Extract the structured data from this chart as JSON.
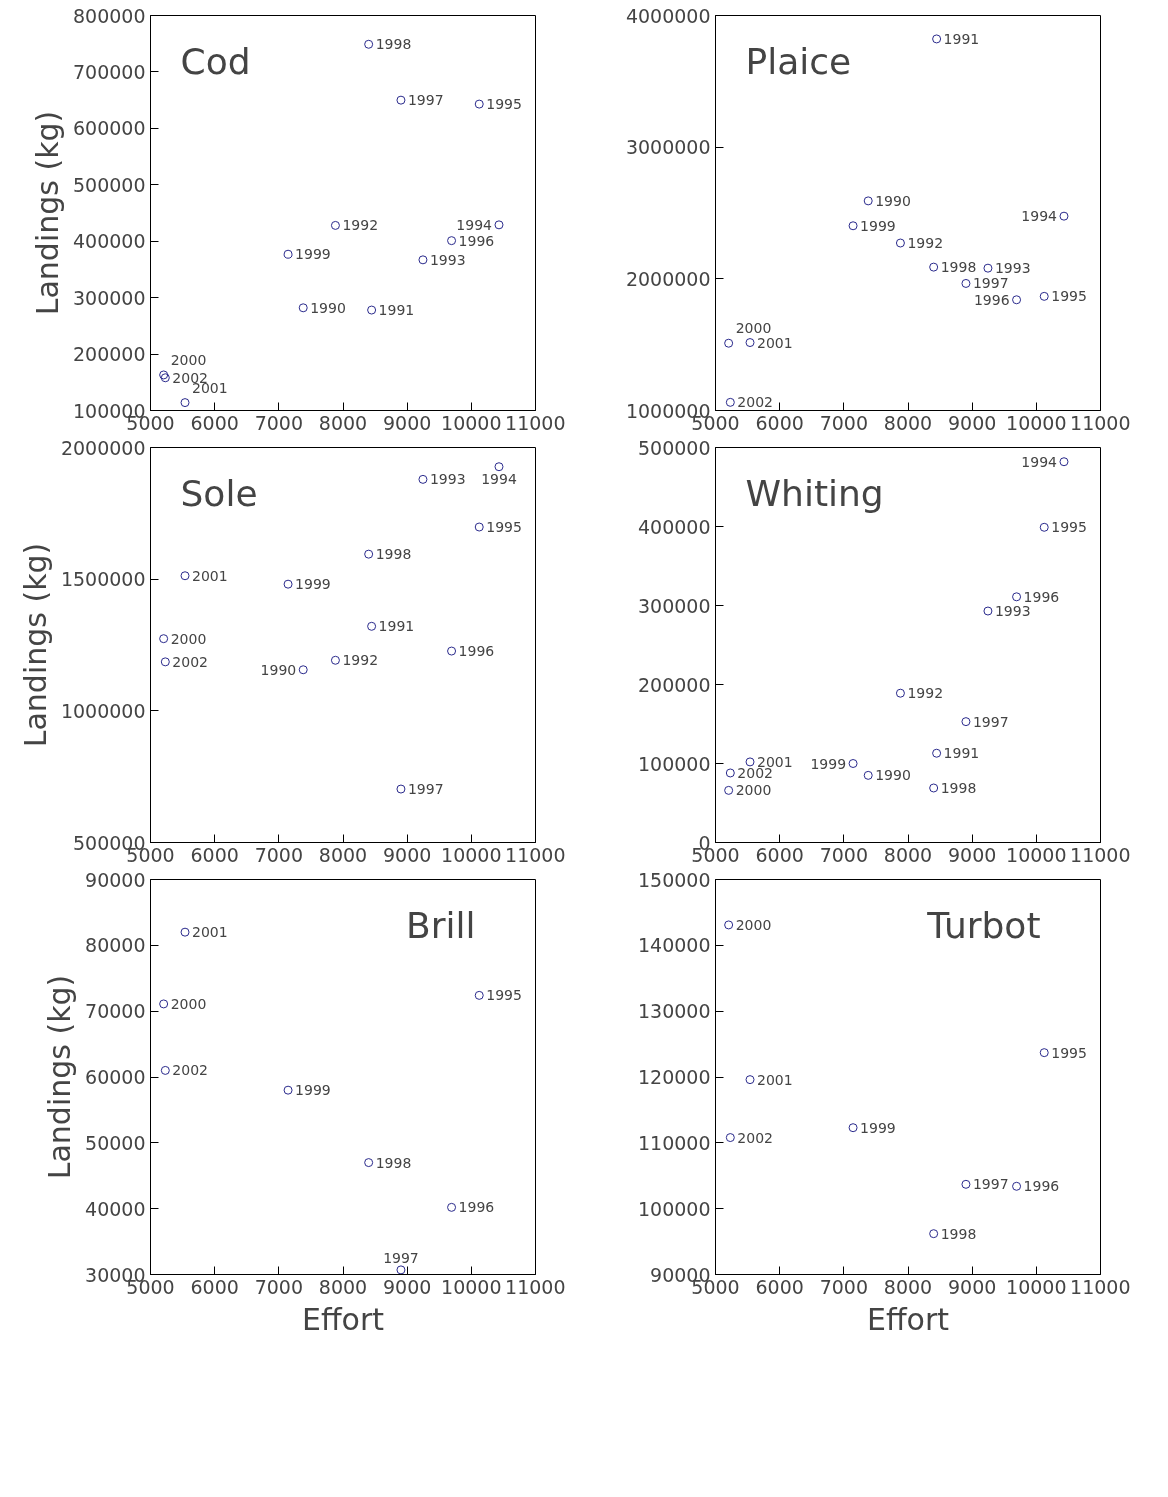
{
  "chart_data": [
    {
      "type": "scatter",
      "title": "Cod",
      "ylabel": "Landings (kg)",
      "marker": "circle",
      "grid": false,
      "series": [
        {
          "color": "#2a2a8c",
          "x": [
            7380,
            8446,
            7882,
            9246,
            10431,
            10123,
            9692,
            8903,
            8400,
            7144,
            5205,
            5538,
            5231
          ],
          "values": [
            282000,
            278000,
            428000,
            367000,
            429000,
            643000,
            401000,
            650000,
            749000,
            377000,
            163000,
            114000,
            158000
          ]
        }
      ],
      "xlim": [
        5000,
        11000
      ],
      "xticks": [
        5000,
        6000,
        7000,
        8000,
        9000,
        10000,
        11000
      ],
      "ylim": [
        100000,
        800000
      ],
      "yticks": [
        100000,
        200000,
        300000,
        400000,
        500000,
        600000,
        700000,
        800000
      ],
      "annotations": [
        {
          "text": "1990",
          "x": 7380,
          "y": 282000
        },
        {
          "text": "1991",
          "x": 8446,
          "y": 278000
        },
        {
          "text": "1992",
          "x": 7882,
          "y": 428000
        },
        {
          "text": "1993",
          "x": 9246,
          "y": 367000
        },
        {
          "text": "1994",
          "x": 10431,
          "y": 429000
        },
        {
          "text": "1995",
          "x": 10123,
          "y": 643000
        },
        {
          "text": "1996",
          "x": 9692,
          "y": 401000
        },
        {
          "text": "1997",
          "x": 8903,
          "y": 650000
        },
        {
          "text": "1998",
          "x": 8400,
          "y": 749000
        },
        {
          "text": "1999",
          "x": 7144,
          "y": 377000
        },
        {
          "text": "2000",
          "x": 5205,
          "y": 163000
        },
        {
          "text": "2001",
          "x": 5538,
          "y": 114000
        },
        {
          "text": "2002",
          "x": 5231,
          "y": 158000
        }
      ]
    },
    {
      "type": "scatter",
      "title": "Plaice",
      "marker": "circle",
      "grid": false,
      "series": [
        {
          "color": "#2a2a8c",
          "x": [
            7380,
            8446,
            7882,
            9246,
            10431,
            10123,
            9692,
            8903,
            8400,
            7144,
            5205,
            5538,
            5231
          ],
          "values": [
            2592000,
            3822000,
            2272000,
            2081000,
            2476000,
            1867000,
            1841000,
            1965000,
            2089000,
            2403000,
            1511000,
            1516000,
            1062000
          ]
        }
      ],
      "xlim": [
        5000,
        11000
      ],
      "xticks": [
        5000,
        6000,
        7000,
        8000,
        9000,
        10000,
        11000
      ],
      "ylim": [
        1000000,
        4000000
      ],
      "yticks": [
        1000000,
        2000000,
        3000000,
        4000000
      ],
      "annotations": [
        {
          "text": "1990",
          "x": 7380,
          "y": 2592000
        },
        {
          "text": "1991",
          "x": 8446,
          "y": 3822000
        },
        {
          "text": "1992",
          "x": 7882,
          "y": 2272000
        },
        {
          "text": "1993",
          "x": 9246,
          "y": 2081000
        },
        {
          "text": "1994",
          "x": 10431,
          "y": 2476000
        },
        {
          "text": "1995",
          "x": 10123,
          "y": 1867000
        },
        {
          "text": "1996",
          "x": 9692,
          "y": 1841000
        },
        {
          "text": "1997",
          "x": 8903,
          "y": 1965000
        },
        {
          "text": "1998",
          "x": 8400,
          "y": 2089000
        },
        {
          "text": "1999",
          "x": 7144,
          "y": 2403000
        },
        {
          "text": "2000",
          "x": 5205,
          "y": 1511000
        },
        {
          "text": "2001",
          "x": 5538,
          "y": 1516000
        },
        {
          "text": "2002",
          "x": 5231,
          "y": 1062000
        }
      ]
    },
    {
      "type": "scatter",
      "title": "Sole",
      "ylabel": "Landings (kg)",
      "marker": "circle",
      "grid": false,
      "series": [
        {
          "color": "#2a2a8c",
          "x": [
            7380,
            8446,
            7882,
            9246,
            10431,
            10123,
            9692,
            8903,
            8400,
            7144,
            5205,
            5538,
            5231
          ],
          "values": [
            1156000,
            1321000,
            1192000,
            1879000,
            1927000,
            1698000,
            1227000,
            703000,
            1595000,
            1481000,
            1274000,
            1513000,
            1186000
          ]
        }
      ],
      "xlim": [
        5000,
        11000
      ],
      "xticks": [
        5000,
        6000,
        7000,
        8000,
        9000,
        10000,
        11000
      ],
      "ylim": [
        500000,
        2000000
      ],
      "yticks": [
        500000,
        1000000,
        1500000,
        2000000
      ],
      "annotations": [
        {
          "text": "1990",
          "x": 7380,
          "y": 1156000
        },
        {
          "text": "1991",
          "x": 8446,
          "y": 1321000
        },
        {
          "text": "1992",
          "x": 7882,
          "y": 1192000
        },
        {
          "text": "1993",
          "x": 9246,
          "y": 1879000
        },
        {
          "text": "1994",
          "x": 10431,
          "y": 1927000
        },
        {
          "text": "1995",
          "x": 10123,
          "y": 1698000
        },
        {
          "text": "1996",
          "x": 9692,
          "y": 1227000
        },
        {
          "text": "1997",
          "x": 8903,
          "y": 703000
        },
        {
          "text": "1998",
          "x": 8400,
          "y": 1595000
        },
        {
          "text": "1999",
          "x": 7144,
          "y": 1481000
        },
        {
          "text": "2000",
          "x": 5205,
          "y": 1274000
        },
        {
          "text": "2001",
          "x": 5538,
          "y": 1513000
        },
        {
          "text": "2002",
          "x": 5231,
          "y": 1186000
        }
      ]
    },
    {
      "type": "scatter",
      "title": "Whiting",
      "marker": "circle",
      "grid": false,
      "series": [
        {
          "color": "#2a2a8c",
          "x": [
            7380,
            8446,
            7882,
            9246,
            10431,
            10123,
            9692,
            8903,
            8400,
            7144,
            5205,
            5538,
            5231
          ],
          "values": [
            85000,
            113000,
            189000,
            293000,
            482000,
            399000,
            311000,
            153000,
            69000,
            100000,
            66000,
            102000,
            88000
          ]
        }
      ],
      "xlim": [
        5000,
        11000
      ],
      "xticks": [
        5000,
        6000,
        7000,
        8000,
        9000,
        10000,
        11000
      ],
      "ylim": [
        0,
        500000
      ],
      "yticks": [
        0,
        100000,
        200000,
        300000,
        400000,
        500000
      ],
      "annotations": [
        {
          "text": "1990",
          "x": 7380,
          "y": 85000
        },
        {
          "text": "1991",
          "x": 8446,
          "y": 113000
        },
        {
          "text": "1992",
          "x": 7882,
          "y": 189000
        },
        {
          "text": "1993",
          "x": 9246,
          "y": 293000
        },
        {
          "text": "1994",
          "x": 10431,
          "y": 482000
        },
        {
          "text": "1995",
          "x": 10123,
          "y": 399000
        },
        {
          "text": "1996",
          "x": 9692,
          "y": 311000
        },
        {
          "text": "1997",
          "x": 8903,
          "y": 153000
        },
        {
          "text": "1998",
          "x": 8400,
          "y": 69000
        },
        {
          "text": "1999",
          "x": 7144,
          "y": 100000
        },
        {
          "text": "2000",
          "x": 5205,
          "y": 66000
        },
        {
          "text": "2001",
          "x": 5538,
          "y": 102000
        },
        {
          "text": "2002",
          "x": 5231,
          "y": 88000
        }
      ]
    },
    {
      "type": "scatter",
      "title": "Brill",
      "ylabel": "Landings (kg)",
      "xlabel": "Effort",
      "marker": "circle",
      "grid": false,
      "series": [
        {
          "color": "#2a2a8c",
          "x": [
            10123,
            9692,
            8903,
            8400,
            7144,
            5205,
            5538,
            5231
          ],
          "values": [
            72400,
            40200,
            30700,
            47000,
            58000,
            71100,
            82000,
            61000
          ]
        }
      ],
      "xlim": [
        5000,
        11000
      ],
      "xticks": [
        5000,
        6000,
        7000,
        8000,
        9000,
        10000,
        11000
      ],
      "ylim": [
        30000,
        90000
      ],
      "yticks": [
        30000,
        40000,
        50000,
        60000,
        70000,
        80000,
        90000
      ],
      "annotations": [
        {
          "text": "1995",
          "x": 10123,
          "y": 72400
        },
        {
          "text": "1996",
          "x": 9692,
          "y": 40200
        },
        {
          "text": "1997",
          "x": 8903,
          "y": 30700
        },
        {
          "text": "1998",
          "x": 8400,
          "y": 47000
        },
        {
          "text": "1999",
          "x": 7144,
          "y": 58000
        },
        {
          "text": "2000",
          "x": 5205,
          "y": 71100
        },
        {
          "text": "2001",
          "x": 5538,
          "y": 82000
        },
        {
          "text": "2002",
          "x": 5231,
          "y": 61000
        }
      ]
    },
    {
      "type": "scatter",
      "title": "Turbot",
      "xlabel": "Effort",
      "marker": "circle",
      "grid": false,
      "series": [
        {
          "color": "#2a2a8c",
          "x": [
            10123,
            9692,
            8903,
            8400,
            7144,
            5205,
            5538,
            5231
          ],
          "values": [
            123700,
            103400,
            103700,
            96200,
            112300,
            143100,
            119600,
            110800
          ]
        }
      ],
      "xlim": [
        5000,
        11000
      ],
      "xticks": [
        5000,
        6000,
        7000,
        8000,
        9000,
        10000,
        11000
      ],
      "ylim": [
        90000,
        150000
      ],
      "yticks": [
        90000,
        100000,
        110000,
        120000,
        130000,
        140000,
        150000
      ],
      "annotations": [
        {
          "text": "1995",
          "x": 10123,
          "y": 123700
        },
        {
          "text": "1996",
          "x": 9692,
          "y": 103400
        },
        {
          "text": "1997",
          "x": 8903,
          "y": 103700
        },
        {
          "text": "1998",
          "x": 8400,
          "y": 96200
        },
        {
          "text": "1999",
          "x": 7144,
          "y": 112300
        },
        {
          "text": "2000",
          "x": 5205,
          "y": 143100
        },
        {
          "text": "2001",
          "x": 5538,
          "y": 119600
        },
        {
          "text": "2002",
          "x": 5231,
          "y": 110800
        }
      ]
    }
  ]
}
